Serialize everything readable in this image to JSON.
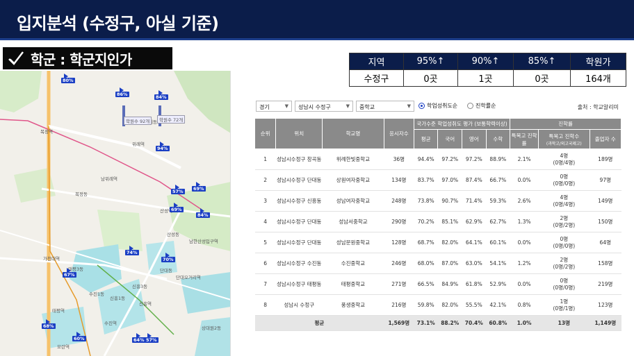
{
  "slide": {
    "title": "입지분석 (수정구, 아실 기준)"
  },
  "section": {
    "icon": "check-icon",
    "label": "학군 : 학군지인가"
  },
  "summary": {
    "headers": [
      "지역",
      "95%↑",
      "90%↑",
      "85%↑",
      "학원가"
    ],
    "row": [
      "수정구",
      "0곳",
      "1곳",
      "0곳",
      "164개"
    ]
  },
  "filters": {
    "region": "경기",
    "district": "성남시 수정구",
    "school_type": "중학교",
    "radio_achievement": "학업성취도순",
    "radio_advance": "진학률순",
    "source": "출처 : 학교알리미"
  },
  "table": {
    "h_rank": "순위",
    "h_location": "위치",
    "h_school": "학교명",
    "h_students": "응시자수",
    "h_group_achievement": "국가수준 학업성취도 평가 (보통학력이상)",
    "h_group_advance": "진학률",
    "h_avg": "평균",
    "h_kor": "국어",
    "h_eng": "영어",
    "h_math": "수학",
    "h_special_rate": "특목고 진학률",
    "h_special_count": "특목고 진학수",
    "h_special_sub": "(과학고/외고국제고)",
    "h_grads": "졸업자 수",
    "rows": [
      {
        "rank": "1",
        "loc": "성남시수정구 창곡동",
        "school": "위례한빛중학교",
        "students": "36명",
        "avg": "94.4%",
        "kor": "97.2%",
        "eng": "97.2%",
        "math": "88.9%",
        "rate": "2.1%",
        "count": "4명",
        "count_sub": "(0명/4명)",
        "grads": "189명"
      },
      {
        "rank": "2",
        "loc": "성남시수정구 단대동",
        "school": "상원여자중학교",
        "students": "134명",
        "avg": "83.7%",
        "kor": "97.0%",
        "eng": "87.4%",
        "math": "66.7%",
        "rate": "0.0%",
        "count": "0명",
        "count_sub": "(0명/0명)",
        "grads": "97명"
      },
      {
        "rank": "3",
        "loc": "성남시수정구 신흥동",
        "school": "성남여자중학교",
        "students": "248명",
        "avg": "73.8%",
        "kor": "90.7%",
        "eng": "71.4%",
        "math": "59.3%",
        "rate": "2.6%",
        "count": "4명",
        "count_sub": "(0명/4명)",
        "grads": "149명"
      },
      {
        "rank": "4",
        "loc": "성남시수정구 단대동",
        "school": "성남서중학교",
        "students": "290명",
        "avg": "70.2%",
        "kor": "85.1%",
        "eng": "62.9%",
        "math": "62.7%",
        "rate": "1.3%",
        "count": "2명",
        "count_sub": "(0명/2명)",
        "grads": "150명"
      },
      {
        "rank": "5",
        "loc": "성남시수정구 단대동",
        "school": "성남문원중학교",
        "students": "128명",
        "avg": "68.7%",
        "kor": "82.0%",
        "eng": "64.1%",
        "math": "60.1%",
        "rate": "0.0%",
        "count": "0명",
        "count_sub": "(0명/0명)",
        "grads": "64명"
      },
      {
        "rank": "6",
        "loc": "성남시수정구 수진동",
        "school": "수진중학교",
        "students": "246명",
        "avg": "68.0%",
        "kor": "87.0%",
        "eng": "63.0%",
        "math": "54.1%",
        "rate": "1.2%",
        "count": "2명",
        "count_sub": "(0명/2명)",
        "grads": "158명"
      },
      {
        "rank": "7",
        "loc": "성남시수정구 태평동",
        "school": "태평중학교",
        "students": "271명",
        "avg": "66.5%",
        "kor": "84.9%",
        "eng": "61.8%",
        "math": "52.9%",
        "rate": "0.0%",
        "count": "0명",
        "count_sub": "(0명/0명)",
        "grads": "219명"
      },
      {
        "rank": "8",
        "loc": "성남시 수정구",
        "school": "풍생중학교",
        "students": "216명",
        "avg": "59.8%",
        "kor": "82.0%",
        "eng": "55.5%",
        "math": "42.1%",
        "rate": "0.8%",
        "count": "1명",
        "count_sub": "(0명/1명)",
        "grads": "123명"
      }
    ],
    "avg_row": {
      "label": "평균",
      "students": "1,569명",
      "avg": "73.1%",
      "kor": "88.2%",
      "eng": "70.4%",
      "math": "60.8%",
      "rate": "1.0%",
      "count": "13명",
      "grads": "1,149명"
    }
  },
  "map": {
    "labels": [
      "복정역",
      "위례역",
      "남위례역",
      "산성역",
      "남한산성입구역",
      "신흥역",
      "단대오거리역",
      "수진역",
      "태평역",
      "가천대역",
      "모란역",
      "위례동",
      "복정동",
      "산성동",
      "단대동",
      "신흥1동",
      "신흥3동",
      "수진1동",
      "태평3동",
      "상대원2동",
      "학원수 92개",
      "학원수 72개"
    ],
    "badges": [
      "80%",
      "86%",
      "84%",
      "94%",
      "57%",
      "69%",
      "69%",
      "84%",
      "74%",
      "70%",
      "67%",
      "68%",
      "60%",
      "64%",
      "57%"
    ]
  }
}
